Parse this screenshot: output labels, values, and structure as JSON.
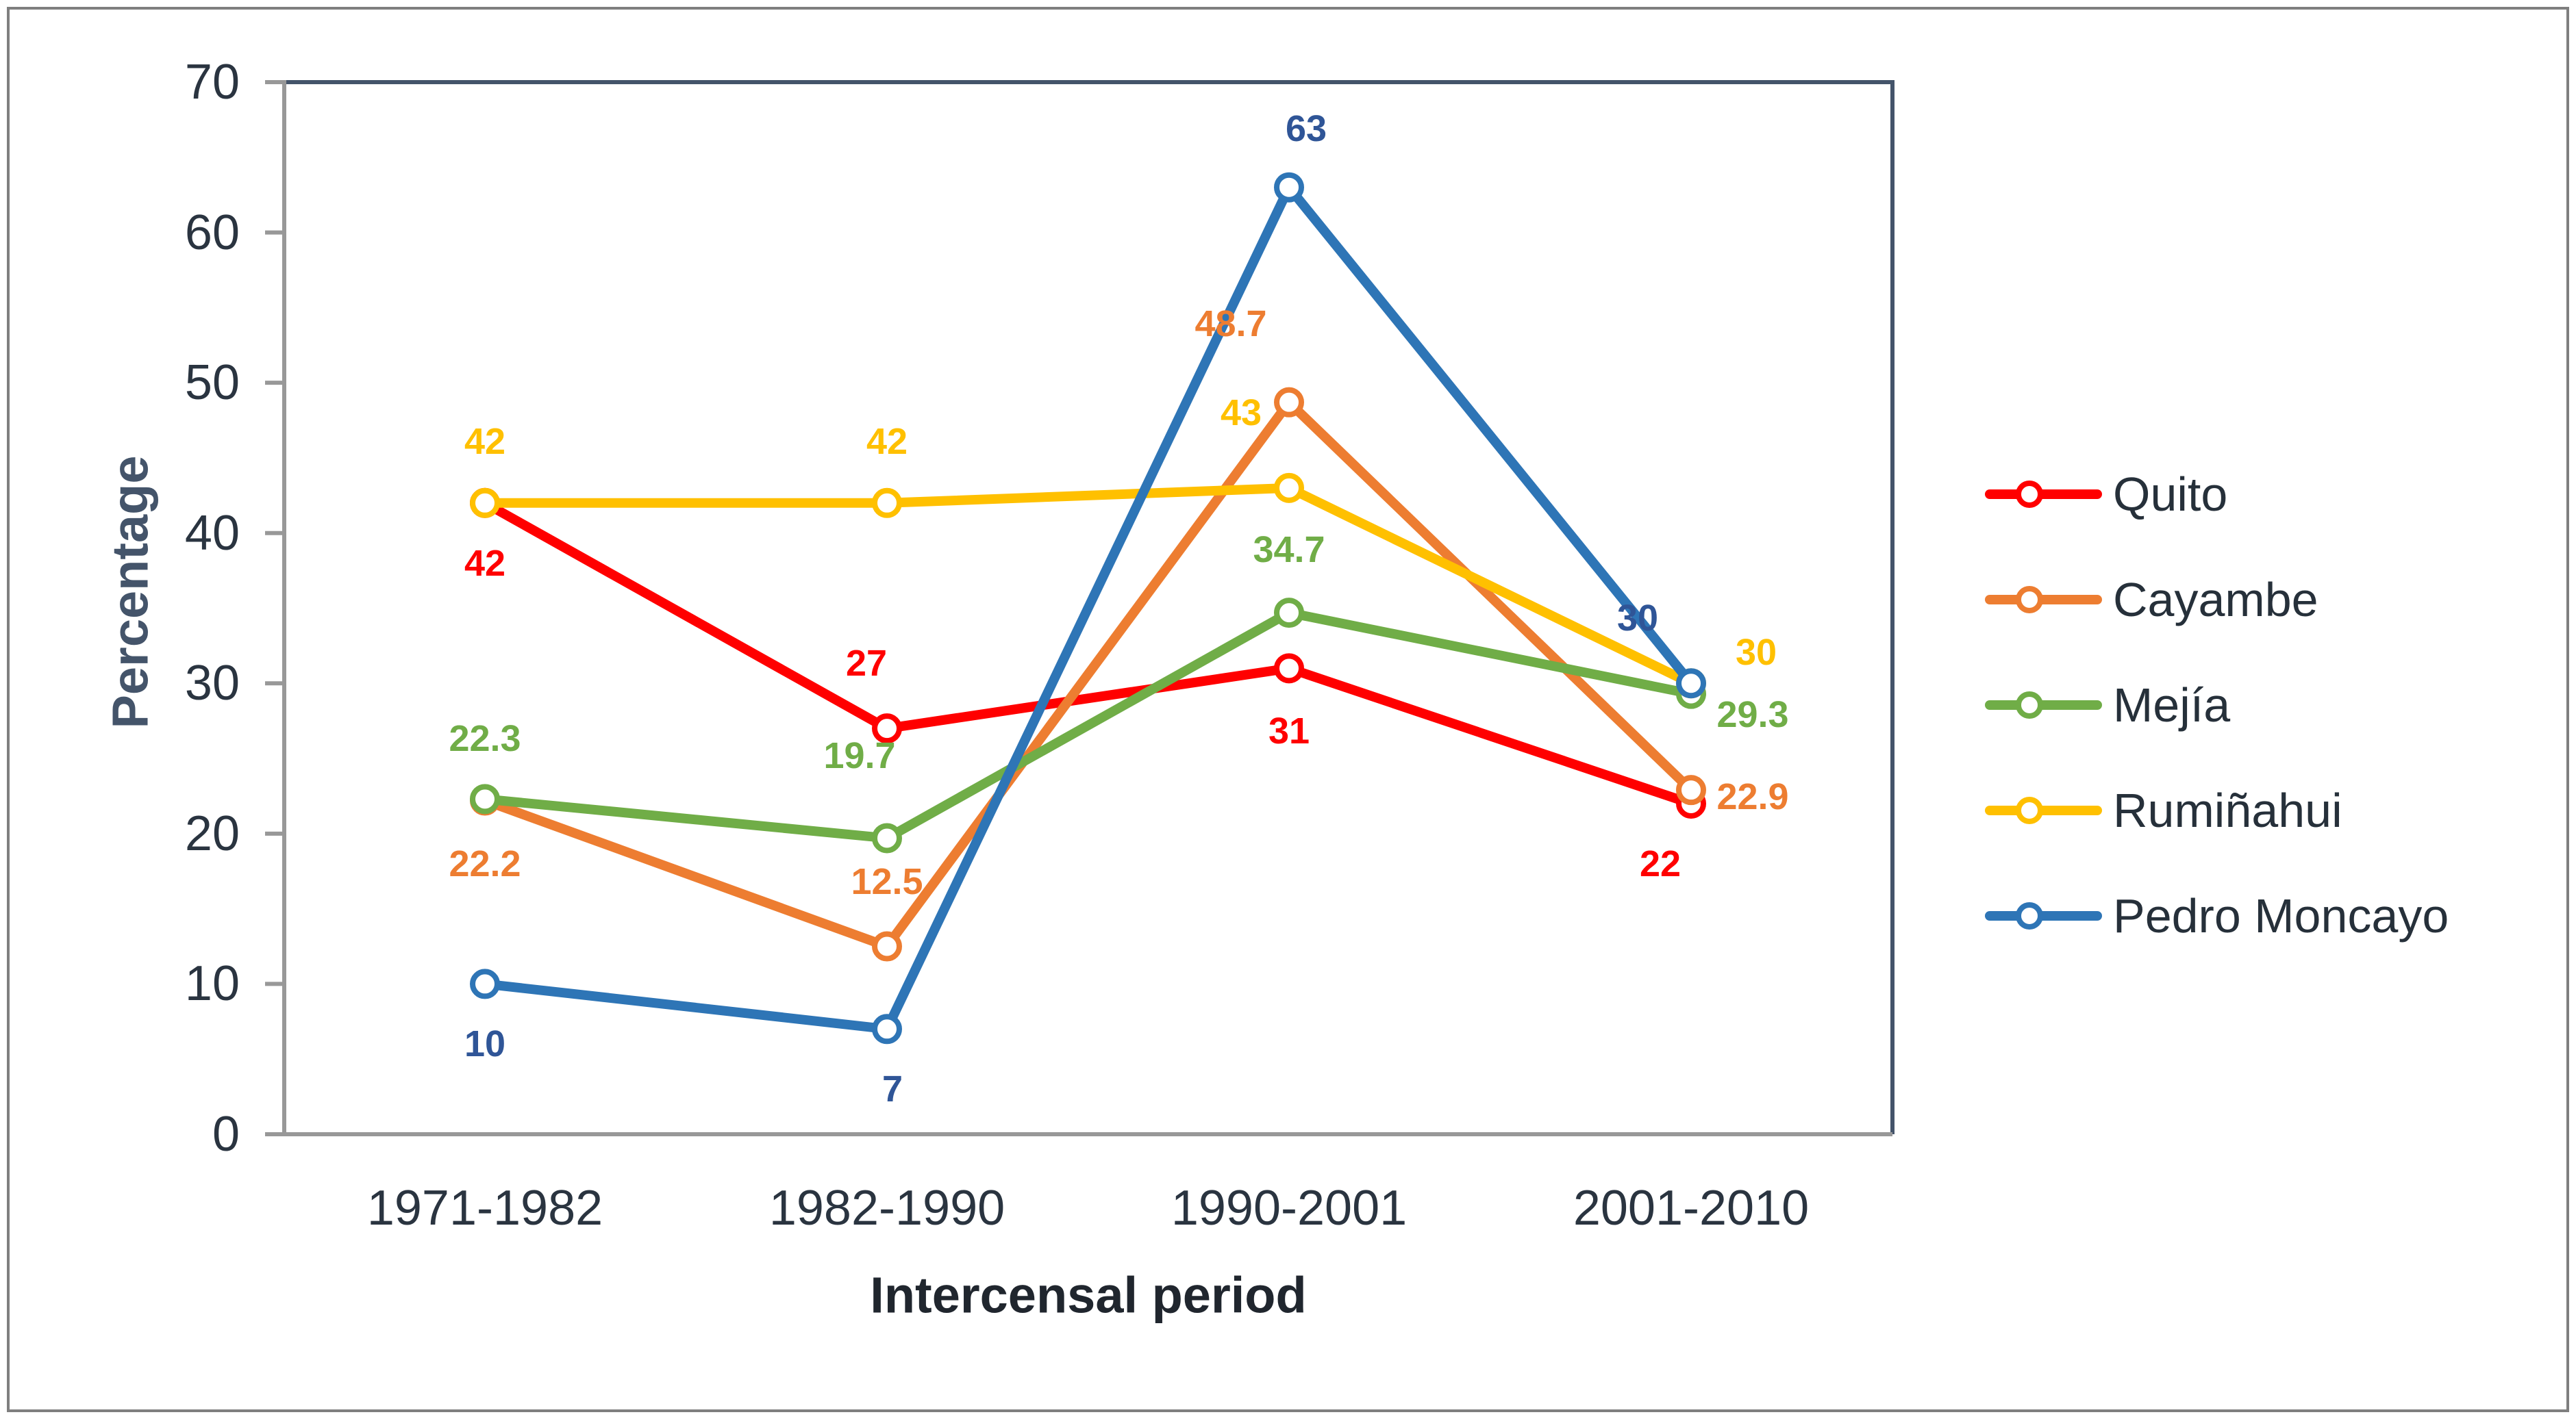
{
  "figure": {
    "background": "#FFFFFF",
    "outer_border_color": "#7F7F7F"
  },
  "chart_data": {
    "type": "line",
    "title": "",
    "xlabel": "Intercensal period",
    "ylabel": "Percentage",
    "categories": [
      "1971-1982",
      "1982-1990",
      "1990-2001",
      "2001-2010"
    ],
    "y_ticks": [
      "0",
      "10",
      "20",
      "30",
      "40",
      "50",
      "60",
      "70"
    ],
    "ylim": [
      0,
      70
    ],
    "grid": false,
    "legend_position": "right",
    "marker": "open-circle",
    "series": [
      {
        "name": "Quito",
        "color": "#FF0000",
        "label_color": "#FF0000",
        "values": [
          42,
          27,
          31,
          22
        ],
        "labels": [
          "42",
          "27",
          "31",
          "22"
        ]
      },
      {
        "name": "Cayambe",
        "color": "#ED7D31",
        "label_color": "#ED7D31",
        "values": [
          22.2,
          12.5,
          48.7,
          22.9
        ],
        "labels": [
          "22.2",
          "12.5",
          "48.7",
          "22.9"
        ]
      },
      {
        "name": "Mejía",
        "color": "#70AD47",
        "label_color": "#70AD47",
        "values": [
          22.3,
          19.7,
          34.7,
          29.3
        ],
        "labels": [
          "22.3",
          "19.7",
          "34.7",
          "29.3"
        ]
      },
      {
        "name": "Rumiñahui",
        "color": "#FFC000",
        "label_color": "#FFC000",
        "values": [
          42,
          42,
          43,
          30
        ],
        "labels": [
          "42",
          "42",
          "43",
          "30"
        ]
      },
      {
        "name": "Pedro Moncayo",
        "color": "#2E75B6",
        "label_color": "#2F5597",
        "values": [
          10,
          7,
          63,
          30
        ],
        "labels": [
          "10",
          "7",
          "63",
          "30"
        ]
      }
    ],
    "axis_line_color": "#989898",
    "plot_border_color": "#44546A",
    "tick_label_color": "#2A3440",
    "xlabel_color": "#20262E",
    "ylabel_color": "#44546A",
    "legend_text_color": "#26303A"
  }
}
